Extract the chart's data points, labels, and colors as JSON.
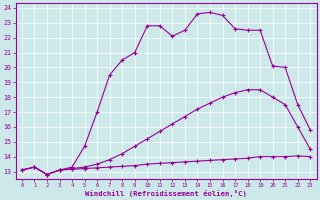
{
  "xlabel": "Windchill (Refroidissement éolien,°C)",
  "xlim_min": -0.5,
  "xlim_max": 23.5,
  "ylim_min": 12.5,
  "ylim_max": 24.3,
  "xticks": [
    0,
    1,
    2,
    3,
    4,
    5,
    6,
    7,
    8,
    9,
    10,
    11,
    12,
    13,
    14,
    15,
    16,
    17,
    18,
    19,
    20,
    21,
    22,
    23
  ],
  "yticks": [
    13,
    14,
    15,
    16,
    17,
    18,
    19,
    20,
    21,
    22,
    23,
    24
  ],
  "bg_color": "#cce8e8",
  "line_color": "#990099",
  "line1_y": [
    13.1,
    13.3,
    12.8,
    13.1,
    13.15,
    13.2,
    13.25,
    13.3,
    13.35,
    13.4,
    13.5,
    13.55,
    13.6,
    13.65,
    13.7,
    13.75,
    13.8,
    13.85,
    13.9,
    14.0,
    14.0,
    14.0,
    14.05,
    14.0
  ],
  "line2_y": [
    13.1,
    13.3,
    12.8,
    13.1,
    13.2,
    13.3,
    13.5,
    13.8,
    14.2,
    14.7,
    15.2,
    15.7,
    16.2,
    16.7,
    17.2,
    17.6,
    18.0,
    18.3,
    18.5,
    18.5,
    18.0,
    17.5,
    16.0,
    14.5
  ],
  "line3_y": [
    13.1,
    13.3,
    12.8,
    13.1,
    13.3,
    14.7,
    17.0,
    19.5,
    20.5,
    21.0,
    22.8,
    22.8,
    22.1,
    22.5,
    23.6,
    23.7,
    23.5,
    22.6,
    22.5,
    22.5,
    20.1,
    20.0,
    17.5,
    15.8
  ]
}
